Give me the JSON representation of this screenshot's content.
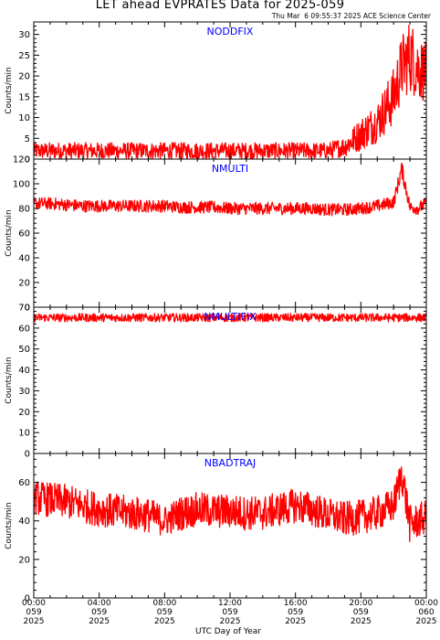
{
  "page": {
    "title": "LET ahead EVPRATES Data for 2025-059",
    "stamp": "Thu Mar  6 09:55:37 2025 ACE Science Center",
    "xlabel": "UTC Day of Year",
    "ylabel": "Counts/min"
  },
  "colors": {
    "trace": "#ff0000",
    "panel_label": "#0000ff",
    "axis": "#000000"
  },
  "chart_data": [
    {
      "type": "line",
      "title": "NODDFIX",
      "ylabel": "Counts/min",
      "ylim": [
        0,
        33
      ],
      "yticks": [
        0,
        5,
        10,
        15,
        20,
        25,
        30
      ],
      "x_hours": [
        0,
        1,
        2,
        3,
        4,
        5,
        6,
        7,
        8,
        9,
        10,
        11,
        12,
        13,
        14,
        15,
        16,
        17,
        18,
        19,
        20,
        21,
        22,
        22.5,
        23,
        23.5,
        24
      ],
      "series": [
        {
          "values": [
            2,
            2,
            2,
            2,
            2,
            2,
            2,
            2,
            2,
            2,
            2,
            2,
            2,
            2,
            2,
            2,
            2,
            2,
            2,
            3,
            6,
            9,
            15,
            22,
            25,
            22,
            21
          ]
        }
      ],
      "spread": [
        2,
        2,
        2,
        2,
        2,
        2,
        2,
        2,
        2,
        2,
        2,
        2,
        2,
        2,
        2,
        2,
        2,
        2,
        2,
        2.5,
        4,
        5,
        7,
        8,
        9,
        8,
        7
      ]
    },
    {
      "type": "line",
      "title": "NMULTI",
      "ylabel": "Counts/min",
      "ylim": [
        0,
        120
      ],
      "yticks": [
        0,
        20,
        40,
        60,
        80,
        100,
        120
      ],
      "x_hours": [
        0,
        1,
        2,
        3,
        4,
        5,
        6,
        7,
        8,
        9,
        10,
        11,
        12,
        13,
        14,
        15,
        16,
        17,
        18,
        19,
        20,
        21,
        22,
        22.5,
        23,
        23.5,
        24
      ],
      "series": [
        {
          "values": [
            84,
            84,
            83,
            82,
            82,
            82,
            82,
            82,
            82,
            81,
            81,
            81,
            80,
            80,
            80,
            80,
            80,
            80,
            79,
            79,
            80,
            82,
            85,
            112,
            81,
            80,
            84
          ]
        }
      ],
      "spread": [
        5,
        5,
        5,
        5,
        5,
        5,
        5,
        5,
        5,
        5,
        5,
        5,
        5,
        5,
        5,
        5,
        5,
        5,
        5,
        5,
        5,
        5,
        5,
        7,
        5,
        5,
        5
      ]
    },
    {
      "type": "line",
      "title": "NMULTIFIX",
      "ylabel": "Counts/min",
      "ylim": [
        0,
        70
      ],
      "yticks": [
        0,
        10,
        20,
        30,
        40,
        50,
        60,
        70
      ],
      "x_hours": [
        0,
        2,
        4,
        6,
        8,
        10,
        12,
        14,
        16,
        18,
        20,
        22,
        24
      ],
      "series": [
        {
          "values": [
            65,
            65,
            65,
            65,
            65,
            65,
            65,
            65,
            65,
            65,
            65,
            65,
            65
          ]
        }
      ],
      "spread": [
        2,
        2,
        2,
        2,
        2,
        2,
        2,
        2,
        2,
        2,
        2,
        2,
        2
      ]
    },
    {
      "type": "line",
      "title": "NBADTRAJ",
      "ylabel": "Counts/min",
      "ylim": [
        0,
        75
      ],
      "yticks": [
        0,
        20,
        40,
        60
      ],
      "x_hours": [
        0,
        1,
        2,
        3,
        4,
        5,
        6,
        7,
        8,
        9,
        10,
        11,
        12,
        13,
        14,
        15,
        16,
        17,
        18,
        19,
        20,
        21,
        22,
        22.5,
        23,
        23.5,
        24
      ],
      "series": [
        {
          "values": [
            52,
            51,
            50,
            48,
            46,
            45,
            44,
            43,
            40,
            44,
            46,
            45,
            45,
            44,
            44,
            46,
            48,
            46,
            43,
            41,
            42,
            44,
            48,
            65,
            38,
            40,
            42
          ]
        }
      ],
      "spread": [
        9,
        9,
        9,
        9,
        9,
        9,
        9,
        9,
        8,
        9,
        9,
        9,
        9,
        9,
        9,
        9,
        9,
        9,
        9,
        9,
        9,
        9,
        9,
        10,
        10,
        9,
        9
      ]
    }
  ],
  "x_axis": {
    "range_hours": [
      0,
      24
    ],
    "ticks": [
      {
        "hour": 0,
        "time": "00:00",
        "doy": "059",
        "year": "2025"
      },
      {
        "hour": 4,
        "time": "04:00",
        "doy": "059",
        "year": "2025"
      },
      {
        "hour": 8,
        "time": "08:00",
        "doy": "059",
        "year": "2025"
      },
      {
        "hour": 12,
        "time": "12:00",
        "doy": "059",
        "year": "2025"
      },
      {
        "hour": 16,
        "time": "16:00",
        "doy": "059",
        "year": "2025"
      },
      {
        "hour": 20,
        "time": "20:00",
        "doy": "059",
        "year": "2025"
      },
      {
        "hour": 24,
        "time": "00:00",
        "doy": "060",
        "year": "2025"
      }
    ]
  }
}
